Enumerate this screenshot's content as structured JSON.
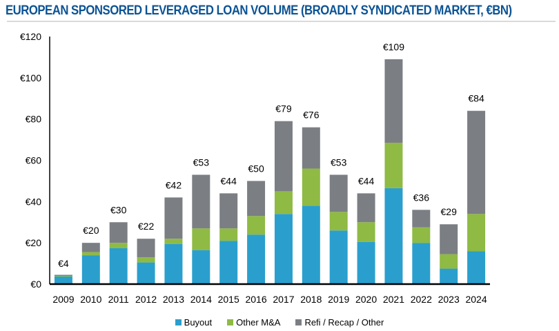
{
  "chart_data": {
    "type": "bar",
    "stacked": true,
    "title": "EUROPEAN SPONSORED LEVERAGED LOAN VOLUME (BROADLY SYNDICATED MARKET, €BN)",
    "xlabel": "",
    "ylabel": "",
    "ylim": [
      0,
      120
    ],
    "yticks": [
      0,
      20,
      40,
      60,
      80,
      100,
      120
    ],
    "ytick_labels": [
      "€0",
      "€20",
      "€40",
      "€60",
      "€80",
      "€100",
      "€120"
    ],
    "grid": false,
    "legend_position": "bottom",
    "categories": [
      "2009",
      "2010",
      "2011",
      "2012",
      "2013",
      "2014",
      "2015",
      "2016",
      "2017",
      "2018",
      "2019",
      "2020",
      "2021",
      "2022",
      "2023",
      "2024"
    ],
    "series": [
      {
        "name": "Buyout",
        "color": "#2a9fcd",
        "values": [
          3.7,
          14,
          17.5,
          10.5,
          19.5,
          16.5,
          21,
          24,
          34,
          38,
          26,
          20.5,
          46.5,
          20,
          7.5,
          16
        ]
      },
      {
        "name": "Other M&A",
        "color": "#8fba44",
        "values": [
          0.3,
          1.5,
          2.5,
          2.5,
          2.5,
          10.5,
          6,
          9,
          11,
          18,
          9,
          9.5,
          22,
          7.5,
          7,
          18
        ]
      },
      {
        "name": "Refi / Recap / Other",
        "color": "#7b7f83",
        "values": [
          0.5,
          4.5,
          10,
          9,
          20,
          26,
          17,
          17,
          34,
          20,
          18,
          14,
          40.5,
          8.5,
          14.5,
          50
        ]
      }
    ],
    "totals": [
      4,
      20,
      30,
      22,
      42,
      53,
      44,
      50,
      79,
      76,
      53,
      44,
      109,
      36,
      29,
      84
    ],
    "total_labels": [
      "€4",
      "€20",
      "€30",
      "€22",
      "€42",
      "€53",
      "€44",
      "€50",
      "€79",
      "€76",
      "€53",
      "€44",
      "€109",
      "€36",
      "€29",
      "€84"
    ]
  }
}
